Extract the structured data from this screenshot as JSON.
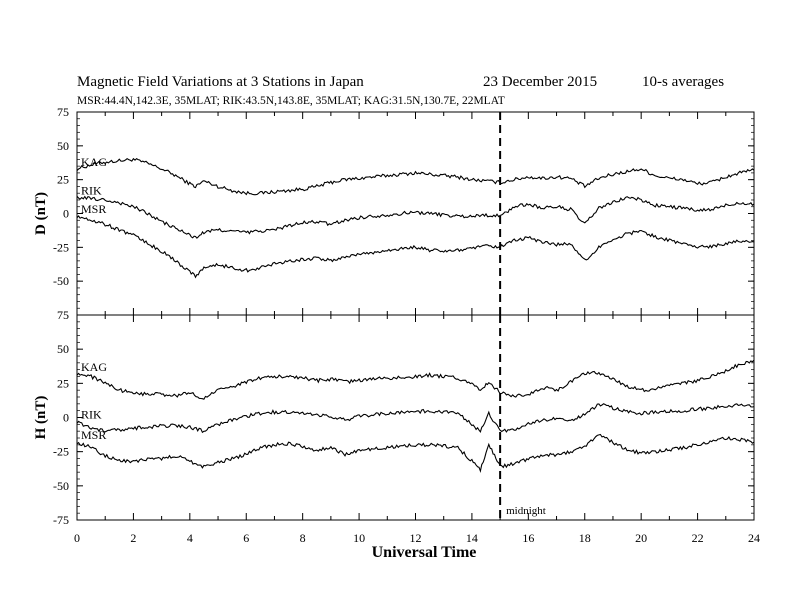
{
  "header": {
    "title": "Magnetic Field Variations at 3 Stations in Japan",
    "date": "23 December 2015",
    "averaging": "10-s averages",
    "stations_line": "MSR:44.4N,142.3E, 35MLAT;  RIK:43.5N,143.8E, 35MLAT;  KAG:31.5N,130.7E, 22MLAT"
  },
  "chart_data": [
    {
      "type": "line",
      "panel": "D",
      "ylabel": "D (nT)",
      "ylim": [
        -75,
        75
      ],
      "yticks": [
        75,
        50,
        25,
        0,
        -25,
        -50,
        -75
      ],
      "xlim": [
        0,
        24
      ],
      "xticks": [
        0,
        2,
        4,
        6,
        8,
        10,
        12,
        14,
        16,
        18,
        20,
        22,
        24
      ],
      "grid": false,
      "x": [
        0,
        0.5,
        1,
        1.5,
        2,
        2.5,
        3,
        3.5,
        4,
        4.2,
        4.5,
        5,
        5.5,
        6,
        6.5,
        7,
        7.5,
        8,
        8.5,
        9,
        9.5,
        10,
        10.5,
        11,
        11.5,
        12,
        12.5,
        13,
        13.5,
        14,
        14.5,
        15,
        15.5,
        16,
        16.5,
        17,
        17.5,
        18,
        18.5,
        19,
        19.5,
        20,
        20.5,
        21,
        21.5,
        22,
        22.5,
        23,
        23.5,
        24
      ],
      "series": [
        {
          "name": "KAG",
          "values": [
            33,
            36,
            38,
            39,
            40,
            37,
            33,
            28,
            22,
            20,
            24,
            20,
            17,
            15,
            15,
            16,
            17,
            18,
            20,
            23,
            25,
            26,
            27,
            28,
            29,
            30,
            29,
            28,
            27,
            25,
            24,
            23,
            25,
            27,
            26,
            27,
            26,
            20,
            26,
            29,
            31,
            33,
            28,
            26,
            25,
            22,
            23,
            27,
            30,
            32
          ]
        },
        {
          "name": "RIK",
          "values": [
            12,
            11,
            10,
            8,
            5,
            0,
            -6,
            -11,
            -16,
            -18,
            -14,
            -12,
            -13,
            -14,
            -13,
            -12,
            -9,
            -7,
            -6,
            -8,
            -5,
            -3,
            -2,
            -1,
            0,
            1,
            0,
            -1,
            -2,
            -2,
            -1,
            -2,
            5,
            7,
            4,
            5,
            3,
            -8,
            4,
            8,
            12,
            10,
            6,
            5,
            4,
            2,
            3,
            6,
            8,
            7
          ]
        },
        {
          "name": "MSR",
          "values": [
            -2,
            -5,
            -8,
            -12,
            -16,
            -22,
            -28,
            -35,
            -43,
            -46,
            -40,
            -38,
            -40,
            -42,
            -40,
            -37,
            -35,
            -34,
            -33,
            -35,
            -32,
            -30,
            -29,
            -27,
            -26,
            -25,
            -27,
            -28,
            -27,
            -26,
            -24,
            -25,
            -20,
            -18,
            -21,
            -23,
            -22,
            -35,
            -25,
            -19,
            -15,
            -13,
            -17,
            -20,
            -22,
            -25,
            -24,
            -22,
            -20,
            -21
          ]
        }
      ]
    },
    {
      "type": "line",
      "panel": "H",
      "ylabel": "H (nT)",
      "ylim": [
        -75,
        75
      ],
      "yticks": [
        75,
        50,
        25,
        0,
        -25,
        -50,
        -75
      ],
      "xlim": [
        0,
        24
      ],
      "xticks": [
        0,
        2,
        4,
        6,
        8,
        10,
        12,
        14,
        16,
        18,
        20,
        22,
        24
      ],
      "grid": false,
      "x": [
        0,
        0.5,
        1,
        1.5,
        2,
        2.5,
        3,
        3.5,
        4,
        4.5,
        5,
        5.5,
        6,
        6.5,
        7,
        7.5,
        8,
        8.5,
        9,
        9.5,
        10,
        10.5,
        11,
        11.5,
        12,
        12.5,
        13,
        13.5,
        14,
        14.3,
        14.6,
        15,
        15.5,
        16,
        16.5,
        17,
        17.5,
        18,
        18.5,
        19,
        19.5,
        20,
        20.5,
        21,
        21.5,
        22,
        22.5,
        23,
        23.5,
        24
      ],
      "series": [
        {
          "name": "KAG",
          "values": [
            32,
            30,
            25,
            20,
            18,
            17,
            17,
            16,
            18,
            14,
            20,
            22,
            26,
            29,
            30,
            30,
            29,
            27,
            28,
            26,
            27,
            28,
            29,
            29,
            30,
            31,
            30,
            29,
            24,
            20,
            26,
            18,
            16,
            17,
            22,
            20,
            26,
            32,
            33,
            28,
            23,
            20,
            21,
            23,
            25,
            27,
            30,
            34,
            39,
            42
          ]
        },
        {
          "name": "RIK",
          "values": [
            -3,
            -8,
            -10,
            -9,
            -8,
            -7,
            -6,
            -6,
            -7,
            -10,
            -5,
            -2,
            1,
            3,
            4,
            4,
            3,
            2,
            1,
            -2,
            1,
            2,
            3,
            4,
            4,
            5,
            4,
            3,
            -5,
            -10,
            3,
            -10,
            -9,
            -5,
            -2,
            -1,
            -3,
            2,
            10,
            7,
            4,
            3,
            4,
            5,
            5,
            6,
            7,
            8,
            9,
            8
          ]
        },
        {
          "name": "MSR",
          "values": [
            -18,
            -22,
            -28,
            -32,
            -32,
            -31,
            -30,
            -28,
            -32,
            -36,
            -33,
            -30,
            -27,
            -22,
            -20,
            -19,
            -21,
            -24,
            -22,
            -27,
            -24,
            -23,
            -22,
            -21,
            -20,
            -20,
            -21,
            -22,
            -32,
            -38,
            -20,
            -36,
            -34,
            -30,
            -28,
            -27,
            -25,
            -22,
            -12,
            -18,
            -24,
            -26,
            -25,
            -24,
            -22,
            -20,
            -18,
            -15,
            -16,
            -18
          ]
        }
      ]
    }
  ],
  "xlabel": "Universal Time",
  "annotation": {
    "label": "midnight",
    "x": 15
  }
}
